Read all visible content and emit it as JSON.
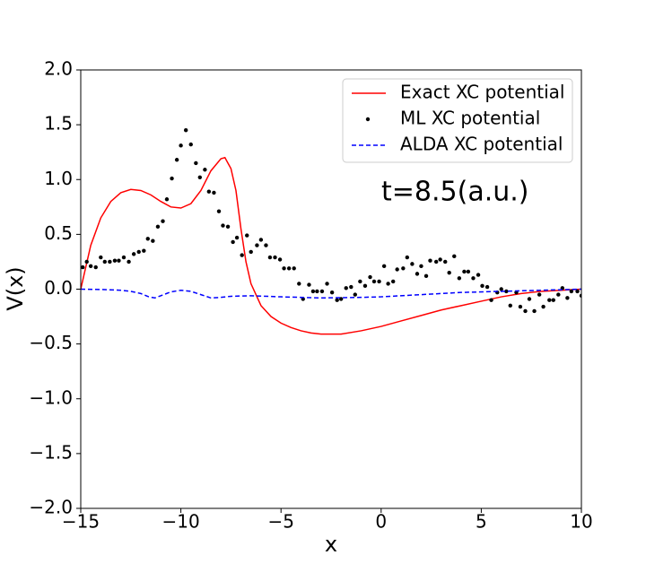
{
  "chart_data": {
    "type": "line",
    "annotation": "t=8.5(a.u.)",
    "x_label": "x",
    "y_label": "V(x)",
    "xlim": [
      -15,
      10
    ],
    "ylim": [
      -2,
      2
    ],
    "xticks": [
      {
        "value": -15,
        "label": "−15"
      },
      {
        "value": -10,
        "label": "−10"
      },
      {
        "value": -5,
        "label": "−5"
      },
      {
        "value": 0,
        "label": "0"
      },
      {
        "value": 5,
        "label": "5"
      },
      {
        "value": 10,
        "label": "10"
      }
    ],
    "yticks": [
      {
        "value": -2,
        "label": "−2.0"
      },
      {
        "value": -1.5,
        "label": "−1.5"
      },
      {
        "value": -1,
        "label": "−1.0"
      },
      {
        "value": -0.5,
        "label": "−0.5"
      },
      {
        "value": 0,
        "label": "0.0"
      },
      {
        "value": 0.5,
        "label": "0.5"
      },
      {
        "value": 1,
        "label": "1.0"
      },
      {
        "value": 1.5,
        "label": "1.5"
      },
      {
        "value": 2,
        "label": "2.0"
      }
    ],
    "grid": false,
    "legend": "upper right",
    "series": [
      {
        "name": "Exact XC potential",
        "color": "#ff0000",
        "style": "solid",
        "x": [
          -15,
          -14.5,
          -14,
          -13.5,
          -13,
          -12.5,
          -12,
          -11.5,
          -11,
          -10.5,
          -10,
          -9.5,
          -9,
          -8.5,
          -8,
          -7.8,
          -7.5,
          -7.25,
          -7,
          -6.75,
          -6.5,
          -6,
          -5.5,
          -5,
          -4.5,
          -4,
          -3.5,
          -3,
          -2.5,
          -2,
          -1,
          0,
          1,
          2,
          3,
          4,
          5,
          6,
          7,
          8,
          9,
          10
        ],
        "values": [
          0,
          0.4,
          0.65,
          0.8,
          0.88,
          0.91,
          0.9,
          0.86,
          0.8,
          0.75,
          0.74,
          0.78,
          0.9,
          1.08,
          1.19,
          1.2,
          1.1,
          0.9,
          0.55,
          0.25,
          0.05,
          -0.15,
          -0.25,
          -0.31,
          -0.35,
          -0.38,
          -0.4,
          -0.41,
          -0.41,
          -0.41,
          -0.38,
          -0.34,
          -0.29,
          -0.24,
          -0.19,
          -0.15,
          -0.11,
          -0.07,
          -0.04,
          -0.02,
          -0.01,
          0
        ]
      },
      {
        "name": "ML XC potential",
        "color": "#000000",
        "style": "dots",
        "x": [
          -14.9,
          -14.7,
          -14.5,
          -14.25,
          -14.0,
          -13.8,
          -13.55,
          -13.3,
          -13.1,
          -12.85,
          -12.6,
          -12.35,
          -12.1,
          -11.85,
          -11.65,
          -11.4,
          -11.15,
          -10.9,
          -10.7,
          -10.45,
          -10.2,
          -10.0,
          -9.75,
          -9.5,
          -9.25,
          -9.05,
          -8.8,
          -8.6,
          -8.35,
          -8.1,
          -7.9,
          -7.65,
          -7.4,
          -7.2,
          -6.95,
          -6.7,
          -6.5,
          -6.2,
          -6.0,
          -5.75,
          -5.55,
          -5.3,
          -5.05,
          -4.85,
          -4.6,
          -4.35,
          -4.1,
          -3.9,
          -3.6,
          -3.4,
          -3.2,
          -2.95,
          -2.7,
          -2.45,
          -2.2,
          -2.0,
          -1.75,
          -1.5,
          -1.3,
          -1.05,
          -0.8,
          -0.55,
          -0.35,
          -0.1,
          0.15,
          0.35,
          0.6,
          0.8,
          1.1,
          1.3,
          1.55,
          1.8,
          2.0,
          2.25,
          2.45,
          2.75,
          2.95,
          3.2,
          3.4,
          3.65,
          3.9,
          4.15,
          4.35,
          4.6,
          4.85,
          5.05,
          5.3,
          5.5,
          5.8,
          6.0,
          6.25,
          6.45,
          6.75,
          6.95,
          7.2,
          7.4,
          7.65,
          7.9,
          8.1,
          8.4,
          8.6,
          8.85,
          9.05,
          9.3,
          9.5,
          9.8,
          10.0
        ],
        "values": [
          0.2,
          0.25,
          0.21,
          0.2,
          0.29,
          0.25,
          0.25,
          0.26,
          0.26,
          0.29,
          0.25,
          0.32,
          0.34,
          0.35,
          0.46,
          0.44,
          0.57,
          0.62,
          0.82,
          1.01,
          1.18,
          1.31,
          1.45,
          1.32,
          1.15,
          1.02,
          1.09,
          0.89,
          0.88,
          0.71,
          0.58,
          0.57,
          0.43,
          0.47,
          0.31,
          0.49,
          0.34,
          0.4,
          0.45,
          0.4,
          0.29,
          0.29,
          0.27,
          0.19,
          0.19,
          0.19,
          0.05,
          -0.09,
          0.04,
          -0.02,
          -0.02,
          -0.02,
          0.05,
          -0.03,
          -0.1,
          -0.09,
          0.01,
          0.02,
          -0.05,
          0.07,
          0.03,
          0.11,
          0.07,
          0.07,
          0.21,
          0.05,
          0.07,
          0.18,
          0.19,
          0.29,
          0.23,
          0.14,
          0.21,
          0.12,
          0.26,
          0.25,
          0.27,
          0.25,
          0.15,
          0.3,
          0.1,
          0.16,
          0.16,
          0.1,
          0.13,
          0.03,
          0.02,
          -0.1,
          -0.03,
          0,
          -0.02,
          -0.15,
          -0.03,
          -0.16,
          -0.2,
          -0.09,
          -0.2,
          -0.05,
          -0.16,
          -0.1,
          -0.1,
          -0.05,
          0.01,
          -0.08,
          -0.02,
          -0.02,
          -0.06
        ]
      },
      {
        "name": "ALDA XC potential",
        "color": "#0000ff",
        "style": "dashed",
        "x": [
          -15,
          -14,
          -13,
          -12.5,
          -12,
          -11.6,
          -11.3,
          -11,
          -10.5,
          -10,
          -9.5,
          -9,
          -8.5,
          -8,
          -7.5,
          -6.5,
          -5,
          -3,
          -1,
          0,
          2,
          4,
          6,
          8,
          10
        ],
        "values": [
          0,
          -0.003,
          -0.01,
          -0.02,
          -0.04,
          -0.07,
          -0.08,
          -0.06,
          -0.025,
          -0.01,
          -0.02,
          -0.05,
          -0.08,
          -0.075,
          -0.065,
          -0.06,
          -0.07,
          -0.08,
          -0.075,
          -0.07,
          -0.05,
          -0.03,
          -0.02,
          -0.01,
          0
        ]
      }
    ]
  }
}
